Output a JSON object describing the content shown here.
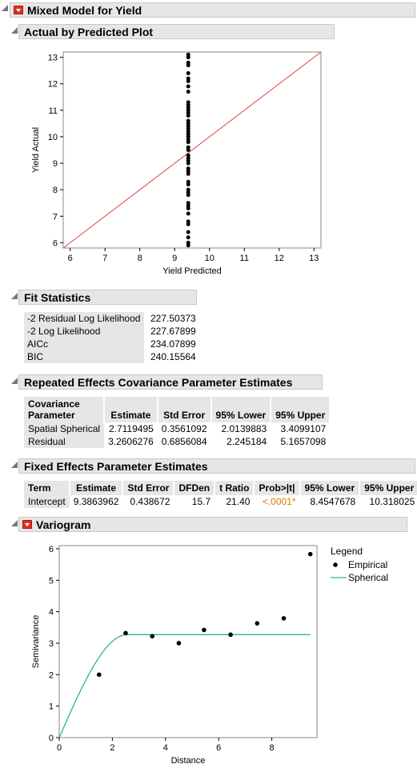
{
  "report": {
    "title": "Mixed Model for Yield",
    "sections": {
      "actual_by_predicted": "Actual by Predicted Plot",
      "fit_statistics": "Fit Statistics",
      "repeated_effects": "Repeated Effects Covariance Parameter Estimates",
      "fixed_effects": "Fixed Effects Parameter Estimates",
      "variogram": "Variogram"
    }
  },
  "fit_statistics": [
    {
      "label": "-2 Residual Log Likelihood",
      "value": "227.50373"
    },
    {
      "label": "-2 Log Likelihood",
      "value": "227.67899"
    },
    {
      "label": "AICc",
      "value": "234.07899"
    },
    {
      "label": "BIC",
      "value": "240.15564"
    }
  ],
  "repeated_effects": {
    "headers": [
      "Covariance Parameter",
      "Estimate",
      "Std Error",
      "95% Lower",
      "95% Upper"
    ],
    "header_line1": "Covariance",
    "header_line2": "Parameter",
    "rows": [
      [
        "Spatial Spherical",
        "2.7119495",
        "0.3561092",
        "2.0139883",
        "3.4099107"
      ],
      [
        "Residual",
        "3.2606276",
        "0.6856084",
        "2.245184",
        "5.1657098"
      ]
    ]
  },
  "fixed_effects": {
    "headers": [
      "Term",
      "Estimate",
      "Std Error",
      "DFDen",
      "t Ratio",
      "Prob>|t|",
      "95% Lower",
      "95% Upper"
    ],
    "rows": [
      [
        "Intercept",
        "9.3863962",
        "0.438672",
        "15.7",
        "21.40",
        "<.0001*",
        "8.4547678",
        "10.318025"
      ]
    ]
  },
  "chart_data": [
    {
      "type": "scatter",
      "xlabel": "Yield Predicted",
      "ylabel": "Yield Actual",
      "xlim": [
        5.8,
        13.2
      ],
      "ylim": [
        5.8,
        13.2
      ],
      "xticks": [
        "6",
        "7",
        "8",
        "9",
        "10",
        "11",
        "12",
        "13"
      ],
      "yticks": [
        "6",
        "7",
        "8",
        "9",
        "10",
        "11",
        "12",
        "13"
      ],
      "x": [
        9.39,
        9.39,
        9.39,
        9.39,
        9.39,
        9.39,
        9.39,
        9.39,
        9.39,
        9.39,
        9.39,
        9.39,
        9.39,
        9.39,
        9.39,
        9.39,
        9.39,
        9.39,
        9.39,
        9.39,
        9.39,
        9.39,
        9.39,
        9.39,
        9.39,
        9.39,
        9.39,
        9.39,
        9.39,
        9.39,
        9.39,
        9.39,
        9.39,
        9.39,
        9.39,
        9.39,
        9.39,
        9.39,
        9.39,
        9.39,
        9.39,
        9.39,
        9.39,
        9.39,
        9.39,
        9.39,
        9.39,
        9.39
      ],
      "y": [
        5.9,
        6.0,
        6.2,
        6.4,
        6.7,
        6.8,
        7.1,
        7.3,
        7.4,
        7.5,
        7.8,
        7.9,
        8.0,
        8.2,
        8.3,
        8.6,
        8.7,
        8.8,
        9.0,
        9.1,
        9.2,
        9.3,
        9.5,
        9.6,
        9.8,
        9.9,
        10.0,
        10.1,
        10.2,
        10.3,
        10.4,
        10.5,
        10.6,
        10.8,
        10.9,
        11.0,
        11.1,
        11.2,
        11.3,
        11.7,
        11.9,
        12.1,
        12.2,
        12.4,
        12.7,
        12.8,
        13.1,
        13.0
      ],
      "reference_line": {
        "from": [
          5.8,
          5.8
        ],
        "to": [
          13.2,
          13.2
        ],
        "color": "#e04040"
      },
      "grid": false
    },
    {
      "type": "scatter",
      "xlabel": "Distance",
      "ylabel": "Semivariance",
      "xlim": [
        0,
        9.7
      ],
      "ylim": [
        0,
        6.1
      ],
      "xticks": [
        "0",
        "2",
        "4",
        "6",
        "8"
      ],
      "yticks": [
        "0",
        "1",
        "2",
        "3",
        "4",
        "5",
        "6"
      ],
      "legend": {
        "title": "Legend",
        "items": [
          "Empirical",
          "Spherical"
        ],
        "placement": "right"
      },
      "empirical": {
        "x": [
          1.5,
          2.5,
          3.5,
          4.5,
          5.45,
          6.45,
          7.45,
          8.45,
          9.45
        ],
        "y": [
          2.0,
          3.32,
          3.22,
          3.0,
          3.42,
          3.27,
          3.63,
          3.79,
          5.83
        ]
      },
      "spherical": {
        "nugget": 0,
        "sill": 3.27,
        "range": 2.55,
        "x_max": 9.45,
        "color": "#2bb5a0"
      },
      "grid": false
    }
  ]
}
